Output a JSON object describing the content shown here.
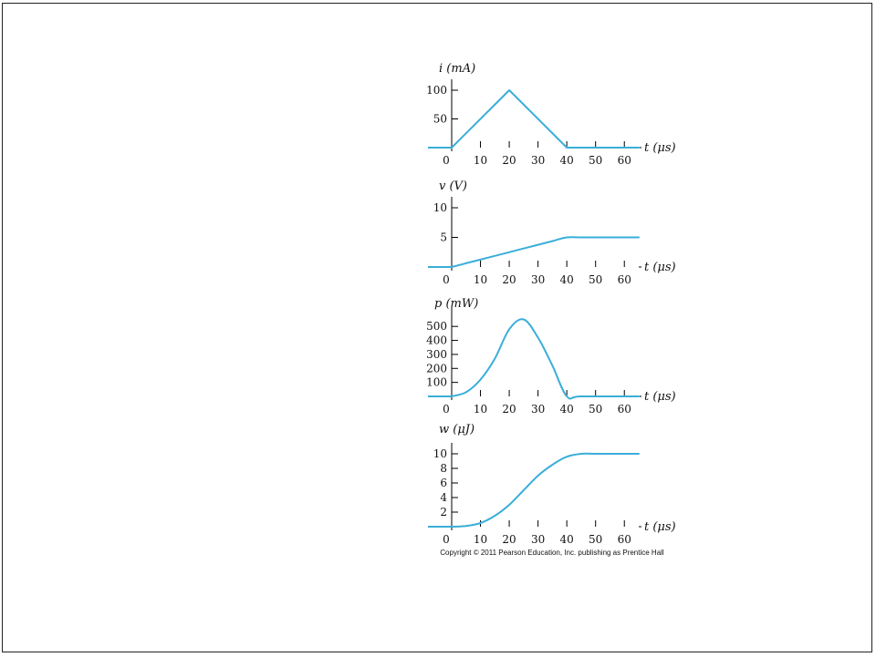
{
  "copyright": "Copyright © 2011 Pearson Education, Inc. publishing as Prentice Hall",
  "colors": {
    "curve": "#3aaed8",
    "axis": "#000000"
  },
  "chart_data": [
    {
      "type": "line",
      "ylabel": "i (mA)",
      "xlabel": "t (μs)",
      "xlim": [
        0,
        65
      ],
      "ylim": [
        0,
        100
      ],
      "xticks": [
        0,
        10,
        20,
        30,
        40,
        50,
        60
      ],
      "yticks": [
        50,
        100
      ],
      "x": [
        0,
        20,
        40,
        65
      ],
      "y": [
        0,
        100,
        0,
        0
      ]
    },
    {
      "type": "line",
      "ylabel": "v (V)",
      "xlabel": "t (μs)",
      "xlim": [
        0,
        65
      ],
      "ylim": [
        0,
        10
      ],
      "xticks": [
        0,
        10,
        20,
        30,
        40,
        50,
        60
      ],
      "yticks": [
        5,
        10
      ],
      "x": [
        0,
        5,
        10,
        15,
        20,
        25,
        30,
        35,
        40,
        45,
        50,
        55,
        60,
        65
      ],
      "y": [
        0,
        0.625,
        1.25,
        1.875,
        2.5,
        3.125,
        3.75,
        4.375,
        5,
        5,
        5,
        5,
        5,
        5
      ]
    },
    {
      "type": "line",
      "ylabel": "p (mW)",
      "xlabel": "t (μs)",
      "xlim": [
        0,
        65
      ],
      "ylim": [
        0,
        560
      ],
      "xticks": [
        0,
        10,
        20,
        30,
        40,
        50,
        60
      ],
      "yticks": [
        100,
        200,
        300,
        400,
        500
      ],
      "x": [
        0,
        5,
        10,
        15,
        20,
        25,
        30,
        35,
        40,
        45,
        65
      ],
      "y": [
        0,
        30,
        120,
        270,
        480,
        550,
        420,
        220,
        0,
        0,
        0
      ]
    },
    {
      "type": "line",
      "ylabel": "w (μJ)",
      "xlabel": "t (μs)",
      "xlim": [
        0,
        65
      ],
      "ylim": [
        0,
        10
      ],
      "xticks": [
        0,
        10,
        20,
        30,
        40,
        50,
        60
      ],
      "yticks": [
        2,
        4,
        6,
        8,
        10
      ],
      "x": [
        0,
        5,
        10,
        15,
        20,
        25,
        30,
        35,
        40,
        45,
        50,
        55,
        60,
        65
      ],
      "y": [
        0,
        0.1,
        0.5,
        1.5,
        3.0,
        5.0,
        7.0,
        8.5,
        9.6,
        10,
        10,
        10,
        10,
        10
      ]
    }
  ]
}
